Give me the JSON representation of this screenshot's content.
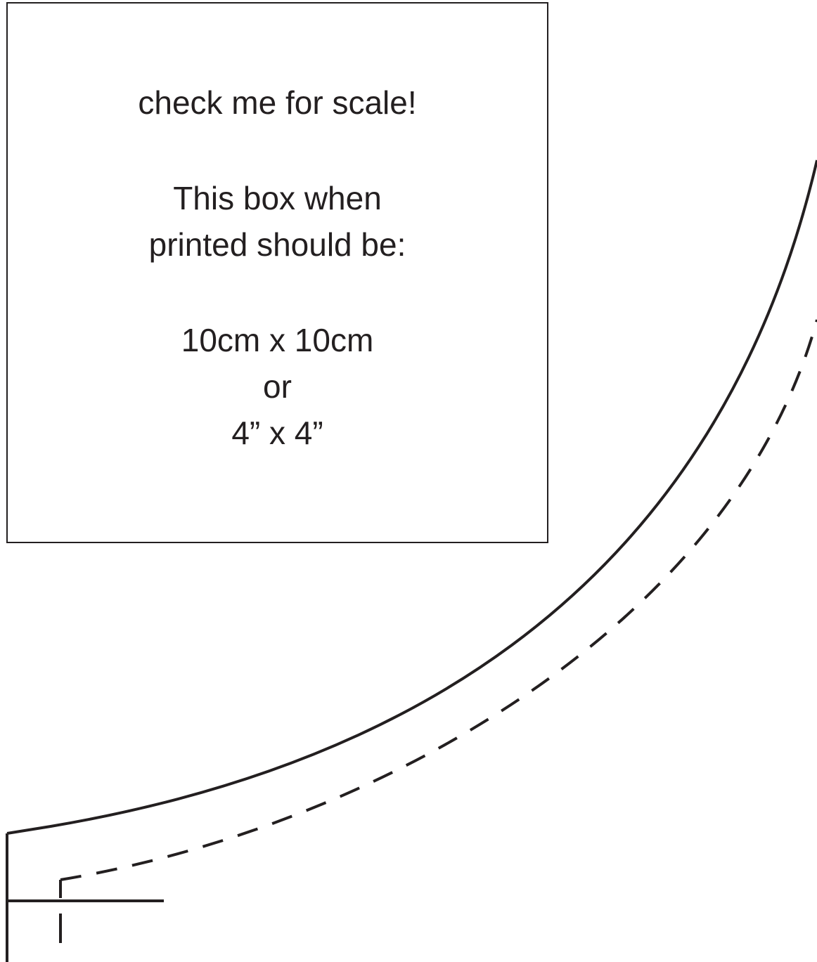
{
  "scale_box": {
    "heading": "check me for scale!",
    "line1": "This box when",
    "line2": "printed should be:",
    "metric": "10cm x 10cm",
    "or": "or",
    "imperial": "4” x 4”"
  },
  "colors": {
    "ink": "#231f20",
    "paper": "#ffffff"
  }
}
